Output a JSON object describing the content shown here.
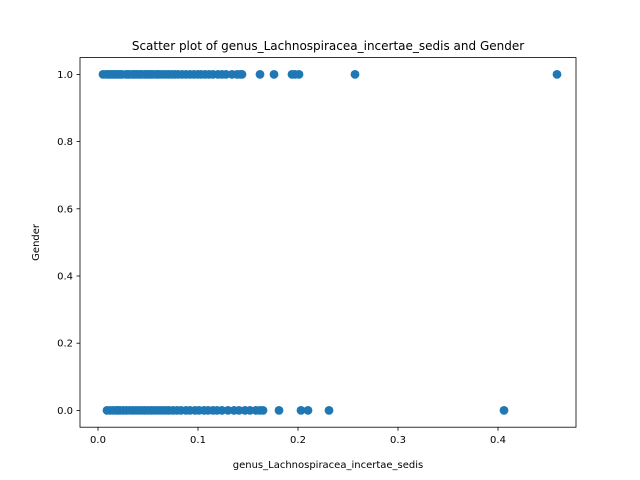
{
  "chart_data": {
    "type": "scatter",
    "title": "Scatter plot of genus_Lachnospiracea_incertae_sedis and Gender",
    "xlabel": "genus_Lachnospiracea_incertae_sedis",
    "ylabel": "Gender",
    "xlim": [
      -0.018,
      0.478
    ],
    "ylim": [
      -0.05,
      1.05
    ],
    "xticks": [
      0.0,
      0.1,
      0.2,
      0.3,
      0.4
    ],
    "xtick_labels": [
      "0.0",
      "0.1",
      "0.2",
      "0.3",
      "0.4"
    ],
    "yticks": [
      0.0,
      0.2,
      0.4,
      0.6,
      0.8,
      1.0
    ],
    "ytick_labels": [
      "0.0",
      "0.2",
      "0.4",
      "0.6",
      "0.8",
      "1.0"
    ],
    "grid": false,
    "marker_color": "#1f77b4",
    "series": [
      {
        "x": [
          0.005,
          0.008,
          0.01,
          0.012,
          0.014,
          0.016,
          0.018,
          0.02,
          0.022,
          0.024,
          0.028,
          0.031,
          0.034,
          0.036,
          0.038,
          0.04,
          0.042,
          0.044,
          0.047,
          0.049,
          0.051,
          0.053,
          0.055,
          0.058,
          0.06,
          0.062,
          0.065,
          0.068,
          0.071,
          0.074,
          0.077,
          0.08,
          0.084,
          0.088,
          0.092,
          0.096,
          0.1,
          0.103,
          0.107,
          0.111,
          0.115,
          0.12,
          0.124,
          0.128,
          0.134,
          0.139,
          0.142,
          0.144,
          0.162,
          0.176,
          0.194,
          0.197,
          0.201,
          0.257,
          0.459
        ],
        "y": [
          1,
          1,
          1,
          1,
          1,
          1,
          1,
          1,
          1,
          1,
          1,
          1,
          1,
          1,
          1,
          1,
          1,
          1,
          1,
          1,
          1,
          1,
          1,
          1,
          1,
          1,
          1,
          1,
          1,
          1,
          1,
          1,
          1,
          1,
          1,
          1,
          1,
          1,
          1,
          1,
          1,
          1,
          1,
          1,
          1,
          1,
          1,
          1,
          1,
          1,
          1,
          1,
          1,
          1,
          1
        ]
      },
      {
        "x": [
          0.009,
          0.012,
          0.015,
          0.018,
          0.02,
          0.022,
          0.025,
          0.028,
          0.032,
          0.035,
          0.038,
          0.041,
          0.044,
          0.047,
          0.05,
          0.053,
          0.056,
          0.059,
          0.062,
          0.065,
          0.068,
          0.071,
          0.075,
          0.079,
          0.083,
          0.088,
          0.092,
          0.097,
          0.101,
          0.106,
          0.11,
          0.115,
          0.119,
          0.124,
          0.13,
          0.136,
          0.141,
          0.147,
          0.152,
          0.158,
          0.162,
          0.165,
          0.181,
          0.203,
          0.21,
          0.231,
          0.406
        ],
        "y": [
          0,
          0,
          0,
          0,
          0,
          0,
          0,
          0,
          0,
          0,
          0,
          0,
          0,
          0,
          0,
          0,
          0,
          0,
          0,
          0,
          0,
          0,
          0,
          0,
          0,
          0,
          0,
          0,
          0,
          0,
          0,
          0,
          0,
          0,
          0,
          0,
          0,
          0,
          0,
          0,
          0,
          0,
          0,
          0,
          0,
          0,
          0
        ]
      }
    ]
  }
}
